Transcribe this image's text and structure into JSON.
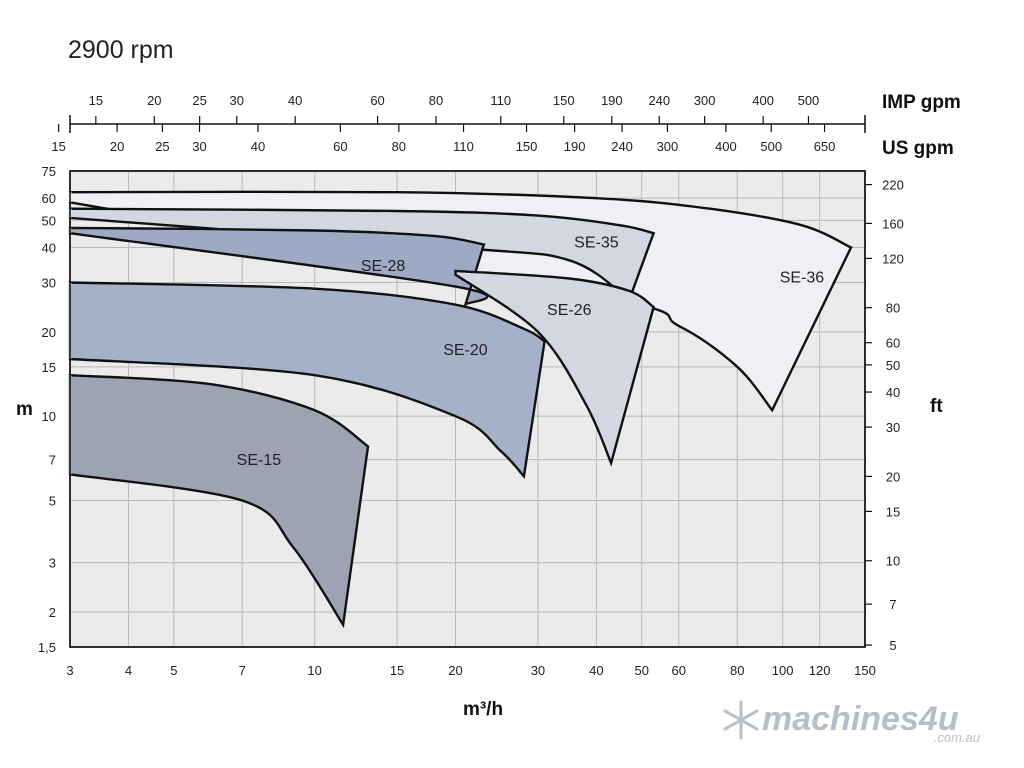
{
  "title": "2900 rpm",
  "chart_data": {
    "type": "area",
    "title": "2900 rpm",
    "xlabel": "m³/h",
    "ylabel_left": "m",
    "ylabel_right": "ft",
    "x_scale": "log",
    "y_scale": "log",
    "xlim": [
      3,
      150
    ],
    "ylim": [
      1.5,
      75
    ],
    "x_ticks": [
      3,
      4,
      5,
      7,
      10,
      15,
      20,
      30,
      40,
      50,
      60,
      80,
      100,
      120,
      150
    ],
    "x_tick_labels": [
      "3",
      "4",
      "5",
      "7",
      "10",
      "15",
      "20",
      "30",
      "40",
      "50",
      "60",
      "80",
      "100",
      "120",
      "150"
    ],
    "y_left_ticks": [
      1.5,
      2,
      3,
      5,
      7,
      10,
      15,
      20,
      30,
      40,
      50,
      60,
      75
    ],
    "y_left_tick_labels": [
      "1,5",
      "2",
      "3",
      "5",
      "7",
      "10",
      "15",
      "20",
      "30",
      "40",
      "50",
      "60",
      "75"
    ],
    "y_right_ticks": [
      5,
      7,
      10,
      15,
      20,
      30,
      40,
      50,
      60,
      80,
      120,
      160,
      220
    ],
    "y_right_tick_labels": [
      "5",
      "7",
      "10",
      "15",
      "20",
      "30",
      "40",
      "50",
      "60",
      "80",
      "120",
      "160",
      "220"
    ],
    "imp_gpm_axis": {
      "label": "IMP gpm",
      "ticks": [
        15,
        20,
        25,
        30,
        40,
        60,
        80,
        110,
        150,
        190,
        240,
        300,
        400,
        500
      ],
      "tick_labels": [
        "15",
        "20",
        "25",
        "30",
        "40",
        "60",
        "80",
        "110",
        "150",
        "190",
        "240",
        "300",
        "400",
        "500"
      ]
    },
    "us_gpm_axis": {
      "label": "US gpm",
      "ticks": [
        15,
        20,
        25,
        30,
        40,
        60,
        80,
        110,
        150,
        190,
        240,
        300,
        400,
        500,
        650
      ],
      "tick_labels": [
        "15",
        "20",
        "25",
        "30",
        "40",
        "60",
        "80",
        "110",
        "150",
        "190",
        "240",
        "300",
        "400",
        "500",
        "650"
      ]
    },
    "grid": true,
    "series": [
      {
        "name": "SE-36",
        "color": "#eef0f4",
        "upper": [
          [
            3,
            63
          ],
          [
            15,
            63
          ],
          [
            40,
            60
          ],
          [
            70,
            55
          ],
          [
            110,
            48
          ],
          [
            140,
            40
          ]
        ],
        "lower": [
          [
            3,
            58
          ],
          [
            40,
            27
          ],
          [
            60,
            21
          ],
          [
            80,
            15
          ],
          [
            95,
            10.5
          ]
        ]
      },
      {
        "name": "SE-35",
        "color": "#d3d7e2",
        "upper": [
          [
            3,
            55
          ],
          [
            15,
            54
          ],
          [
            30,
            52
          ],
          [
            45,
            48
          ],
          [
            53,
            45
          ]
        ],
        "lower": [
          [
            3,
            51
          ],
          [
            20,
            40
          ],
          [
            35,
            36
          ],
          [
            47,
            26
          ]
        ]
      },
      {
        "name": "SE-28",
        "color": "#9eaac4",
        "upper": [
          [
            3,
            47
          ],
          [
            10,
            46
          ],
          [
            18,
            44
          ],
          [
            23,
            41
          ]
        ],
        "lower": [
          [
            3,
            45
          ],
          [
            20,
            29
          ],
          [
            21,
            25
          ]
        ]
      },
      {
        "name": "SE-26",
        "color": "#d3d7e2",
        "upper": [
          [
            20,
            33
          ],
          [
            35,
            31
          ],
          [
            47,
            28
          ],
          [
            53,
            24.5
          ]
        ],
        "lower": [
          [
            20,
            32
          ],
          [
            30,
            20
          ],
          [
            38,
            11
          ],
          [
            43,
            6.8
          ]
        ]
      },
      {
        "name": "SE-20",
        "color": "#a4b1c9",
        "upper": [
          [
            3,
            30
          ],
          [
            10,
            28.5
          ],
          [
            20,
            25
          ],
          [
            28,
            20.5
          ],
          [
            31,
            18.5
          ]
        ],
        "lower": [
          [
            3,
            16
          ],
          [
            10,
            14
          ],
          [
            20,
            10
          ],
          [
            25,
            7.5
          ],
          [
            28,
            6.1
          ]
        ]
      },
      {
        "name": "SE-15",
        "color": "#9ea3b4",
        "upper": [
          [
            3,
            14
          ],
          [
            6,
            13
          ],
          [
            10,
            10.5
          ],
          [
            13,
            7.8
          ]
        ],
        "lower": [
          [
            3,
            6.2
          ],
          [
            7,
            5
          ],
          [
            9,
            3.4
          ],
          [
            11.5,
            1.8
          ]
        ]
      }
    ]
  },
  "watermark": {
    "main": "machines4u",
    "sub": ".com.au"
  }
}
